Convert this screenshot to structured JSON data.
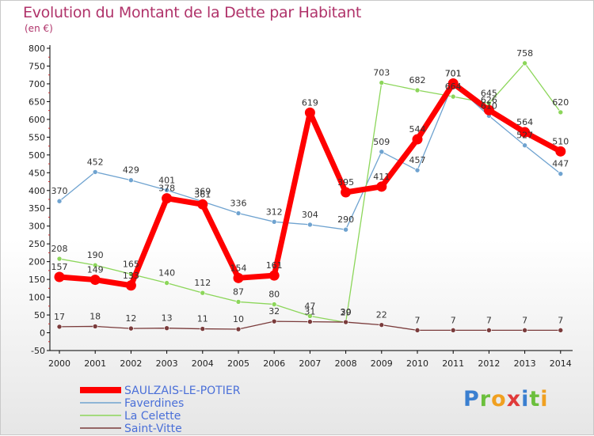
{
  "title": "Evolution du Montant de la Dette par Habitant",
  "unit": "(en €)",
  "logo": "Proxiti",
  "chart_data": {
    "type": "line",
    "x": [
      "2000",
      "2001",
      "2002",
      "2003",
      "2004",
      "2005",
      "2006",
      "2007",
      "2008",
      "2009",
      "2010",
      "2011",
      "2012",
      "2013",
      "2014"
    ],
    "ylim": [
      -50,
      800
    ],
    "yticks": [
      -50,
      0,
      50,
      100,
      150,
      200,
      250,
      300,
      350,
      400,
      450,
      500,
      550,
      600,
      650,
      700,
      750,
      800
    ],
    "grid": false,
    "legend_placement": "bottom-left",
    "series": [
      {
        "name": "SAULZAIS-LE-POTIER",
        "color": "#ff0000",
        "values": [
          157,
          149,
          133,
          378,
          361,
          154,
          161,
          619,
          395,
          411,
          544,
          701,
          626,
          564,
          510
        ]
      },
      {
        "name": "Faverdines",
        "color": "#6fa3d0",
        "values": [
          370,
          452,
          429,
          401,
          369,
          336,
          312,
          304,
          290,
          509,
          457,
          701,
          610,
          527,
          447
        ]
      },
      {
        "name": "La Celette",
        "color": "#8cd65a",
        "values": [
          208,
          190,
          165,
          140,
          112,
          87,
          80,
          47,
          29,
          703,
          682,
          664,
          645,
          758,
          620
        ]
      },
      {
        "name": "Saint-Vitte",
        "color": "#7a3b3b",
        "values": [
          17,
          18,
          12,
          13,
          11,
          10,
          32,
          31,
          30,
          22,
          7,
          7,
          7,
          7,
          7
        ]
      }
    ]
  }
}
